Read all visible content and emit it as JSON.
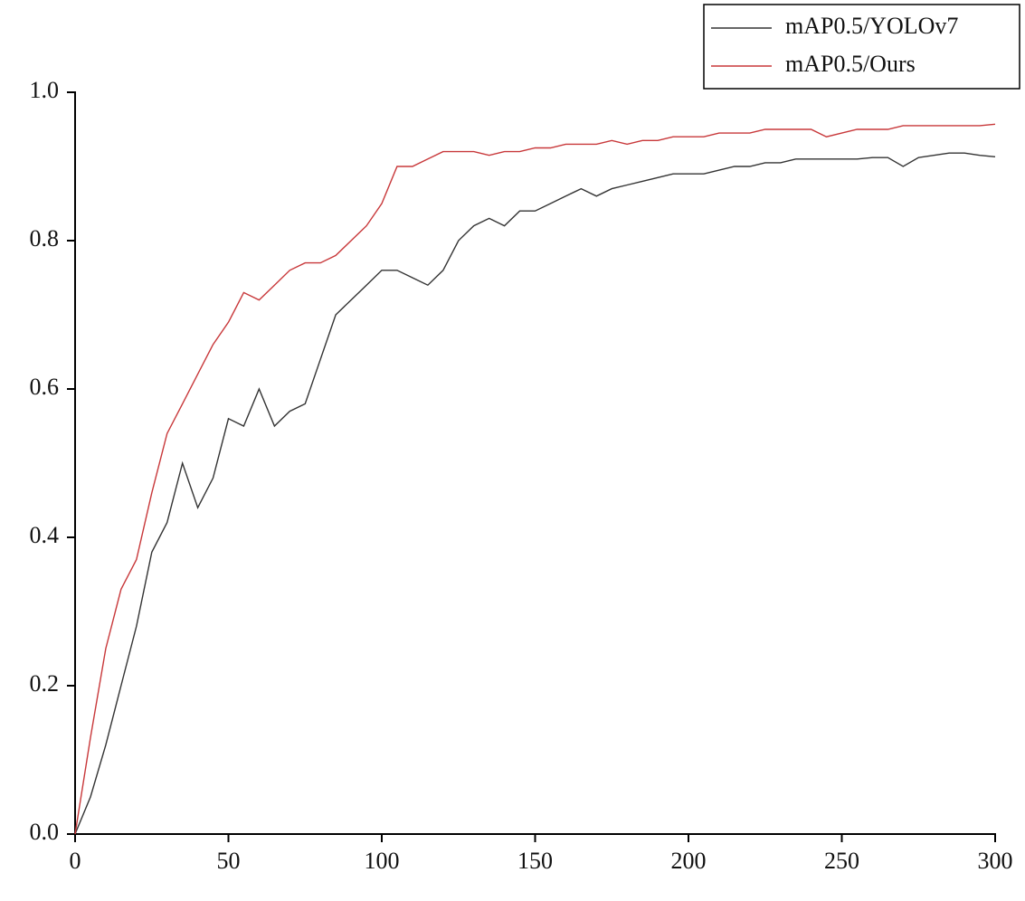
{
  "chart_data": {
    "type": "line",
    "x": [
      0,
      5,
      10,
      15,
      20,
      25,
      30,
      35,
      40,
      45,
      50,
      55,
      60,
      65,
      70,
      75,
      80,
      85,
      90,
      95,
      100,
      105,
      110,
      115,
      120,
      125,
      130,
      135,
      140,
      145,
      150,
      155,
      160,
      165,
      170,
      175,
      180,
      185,
      190,
      195,
      200,
      205,
      210,
      215,
      220,
      225,
      230,
      235,
      240,
      245,
      250,
      255,
      260,
      265,
      270,
      275,
      280,
      285,
      290,
      295,
      300
    ],
    "series": [
      {
        "name": "mAP0.5/YOLOv7",
        "color": "#333333",
        "values": [
          0.0,
          0.05,
          0.12,
          0.2,
          0.28,
          0.38,
          0.42,
          0.5,
          0.44,
          0.48,
          0.56,
          0.55,
          0.6,
          0.55,
          0.57,
          0.58,
          0.64,
          0.7,
          0.72,
          0.74,
          0.76,
          0.76,
          0.75,
          0.74,
          0.76,
          0.8,
          0.82,
          0.83,
          0.82,
          0.84,
          0.84,
          0.85,
          0.86,
          0.87,
          0.86,
          0.87,
          0.875,
          0.88,
          0.885,
          0.89,
          0.89,
          0.89,
          0.895,
          0.9,
          0.9,
          0.905,
          0.905,
          0.91,
          0.91,
          0.91,
          0.91,
          0.91,
          0.912,
          0.912,
          0.9,
          0.912,
          0.915,
          0.918,
          0.918,
          0.915,
          0.913
        ]
      },
      {
        "name": "mAP0.5/Ours",
        "color": "#c8383a",
        "values": [
          0.0,
          0.13,
          0.25,
          0.33,
          0.37,
          0.46,
          0.54,
          0.58,
          0.62,
          0.66,
          0.69,
          0.73,
          0.72,
          0.74,
          0.76,
          0.77,
          0.77,
          0.78,
          0.8,
          0.82,
          0.85,
          0.9,
          0.9,
          0.91,
          0.92,
          0.92,
          0.92,
          0.915,
          0.92,
          0.92,
          0.925,
          0.925,
          0.93,
          0.93,
          0.93,
          0.935,
          0.93,
          0.935,
          0.935,
          0.94,
          0.94,
          0.94,
          0.945,
          0.945,
          0.945,
          0.95,
          0.95,
          0.95,
          0.95,
          0.94,
          0.945,
          0.95,
          0.95,
          0.95,
          0.955,
          0.955,
          0.955,
          0.955,
          0.955,
          0.955,
          0.957
        ]
      }
    ],
    "xlim": [
      0,
      300
    ],
    "xticks": [
      0,
      50,
      100,
      150,
      200,
      250,
      300
    ],
    "ylim": [
      0,
      1
    ],
    "yticks": [
      {
        "value": 0,
        "label": "0.0"
      },
      0.2,
      0.4,
      0.6,
      0.8,
      {
        "value": 1,
        "label": "1.0"
      }
    ],
    "legend": "top-right"
  }
}
